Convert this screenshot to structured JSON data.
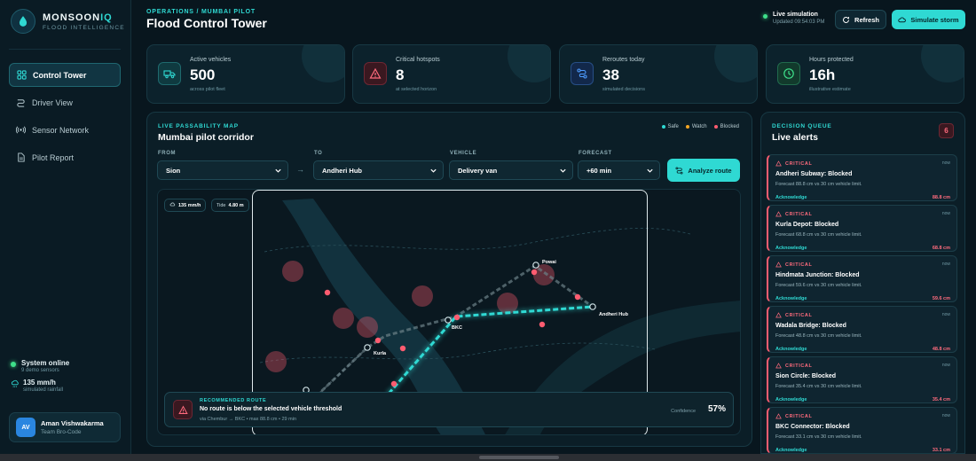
{
  "brand": {
    "name_main": "MONSOON",
    "name_accent": "IQ",
    "subtitle": "FLOOD INTELLIGENCE"
  },
  "nav": [
    {
      "label": "Control Tower",
      "icon": "grid-icon",
      "active": true
    },
    {
      "label": "Driver View",
      "icon": "route-icon",
      "active": false
    },
    {
      "label": "Sensor Network",
      "icon": "signal-icon",
      "active": false
    },
    {
      "label": "Pilot Report",
      "icon": "document-icon",
      "active": false
    }
  ],
  "sidebar_status": {
    "system": "System online",
    "system_sub": "9 demo sensors",
    "rain": "135 mm/h",
    "rain_sub": "simulated rainfall"
  },
  "user": {
    "initials": "AV",
    "name": "Aman Vishwakarma",
    "team": "Team Bro-Code"
  },
  "header": {
    "breadcrumb": "OPERATIONS / MUMBAI PILOT",
    "title": "Flood Control Tower",
    "live_title": "Live simulation",
    "live_updated": "Updated 09:54:03 PM",
    "refresh_label": "Refresh",
    "storm_label": "Simulate storm"
  },
  "kpis": [
    {
      "label": "Active vehicles",
      "value": "500",
      "note": "across pilot fleet",
      "icon": "truck-icon",
      "color": "#2fd9d3"
    },
    {
      "label": "Critical hotspots",
      "value": "8",
      "note": "at selected horizon",
      "icon": "warning-icon",
      "color": "#ff6b7d"
    },
    {
      "label": "Reroutes today",
      "value": "38",
      "note": "simulated decisions",
      "icon": "route-icon",
      "color": "#4d9cff"
    },
    {
      "label": "Hours protected",
      "value": "16h",
      "note": "illustrative estimate",
      "icon": "clock-icon",
      "color": "#3ee08a"
    }
  ],
  "map": {
    "eyebrow": "LIVE PASSABILITY MAP",
    "title": "Mumbai pilot corridor",
    "legend": [
      {
        "label": "Safe",
        "color": "#2fd9d3"
      },
      {
        "label": "Watch",
        "color": "#f5a623"
      },
      {
        "label": "Blocked",
        "color": "#ff5c70"
      }
    ],
    "filters": {
      "from_label": "FROM",
      "from_value": "Sion",
      "to_label": "TO",
      "to_value": "Andheri Hub",
      "vehicle_label": "VEHICLE",
      "vehicle_value": "Delivery van",
      "forecast_label": "FORECAST",
      "forecast_value": "+60 min",
      "arrow": "→"
    },
    "analyze_label": "Analyze route",
    "chips": {
      "rain": "135 mm/h",
      "tide_label": "Tide",
      "tide_value": "4.80 m"
    },
    "nodes": {
      "powai": "Powai",
      "andheri": "Andheri Hub",
      "bkc": "BKC",
      "kurla": "Kurla"
    },
    "route": {
      "eyebrow": "RECOMMENDED ROUTE",
      "title": "No route is below the selected vehicle threshold",
      "sub": "via Chembur → BKC • max 88.8 cm • 29 min",
      "confidence_label": "Confidence",
      "confidence_value": "57%"
    }
  },
  "alerts": {
    "eyebrow": "DECISION QUEUE",
    "title": "Live alerts",
    "count": "6",
    "items": [
      {
        "severity": "CRITICAL",
        "time": "now",
        "title": "Andheri Subway: Blocked",
        "desc": "Forecast 88.8 cm vs 30 cm vehicle limit.",
        "ack": "Acknowledge",
        "level": "88.8 cm"
      },
      {
        "severity": "CRITICAL",
        "time": "now",
        "title": "Kurla Depot: Blocked",
        "desc": "Forecast 68.8 cm vs 30 cm vehicle limit.",
        "ack": "Acknowledge",
        "level": "68.8 cm"
      },
      {
        "severity": "CRITICAL",
        "time": "now",
        "title": "Hindmata Junction: Blocked",
        "desc": "Forecast 59.6 cm vs 30 cm vehicle limit.",
        "ack": "Acknowledge",
        "level": "59.6 cm"
      },
      {
        "severity": "CRITICAL",
        "time": "now",
        "title": "Wadala Bridge: Blocked",
        "desc": "Forecast 48.8 cm vs 30 cm vehicle limit.",
        "ack": "Acknowledge",
        "level": "48.8 cm"
      },
      {
        "severity": "CRITICAL",
        "time": "now",
        "title": "Sion Circle: Blocked",
        "desc": "Forecast 35.4 cm vs 30 cm vehicle limit.",
        "ack": "Acknowledge",
        "level": "35.4 cm"
      },
      {
        "severity": "CRITICAL",
        "time": "now",
        "title": "BKC Connector: Blocked",
        "desc": "Forecast 33.1 cm vs 30 cm vehicle limit.",
        "ack": "Acknowledge",
        "level": "33.1 cm"
      }
    ]
  }
}
